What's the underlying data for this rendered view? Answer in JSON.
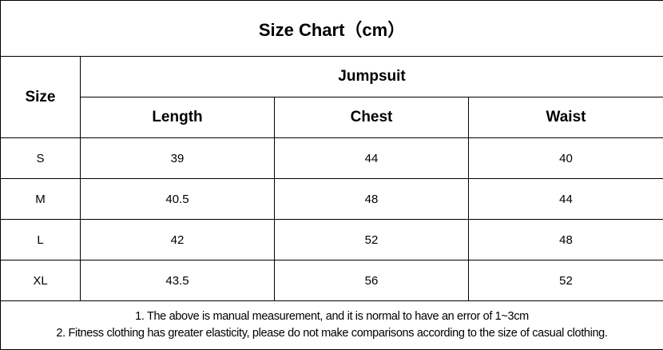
{
  "title": "Size Chart（cm）",
  "headers": {
    "size": "Size",
    "group": "Jumpsuit",
    "columns": [
      "Length",
      "Chest",
      "Waist"
    ]
  },
  "rows": [
    {
      "size": "S",
      "values": [
        "39",
        "44",
        "40"
      ]
    },
    {
      "size": "M",
      "values": [
        "40.5",
        "48",
        "44"
      ]
    },
    {
      "size": "L",
      "values": [
        "42",
        "52",
        "48"
      ]
    },
    {
      "size": "XL",
      "values": [
        "43.5",
        "56",
        "52"
      ]
    }
  ],
  "notes": [
    "1. The above is manual measurement, and it is normal to have an error of 1~3cm",
    "2. Fitness clothing has greater elasticity, please do not make comparisons according to the size of casual clothing."
  ]
}
